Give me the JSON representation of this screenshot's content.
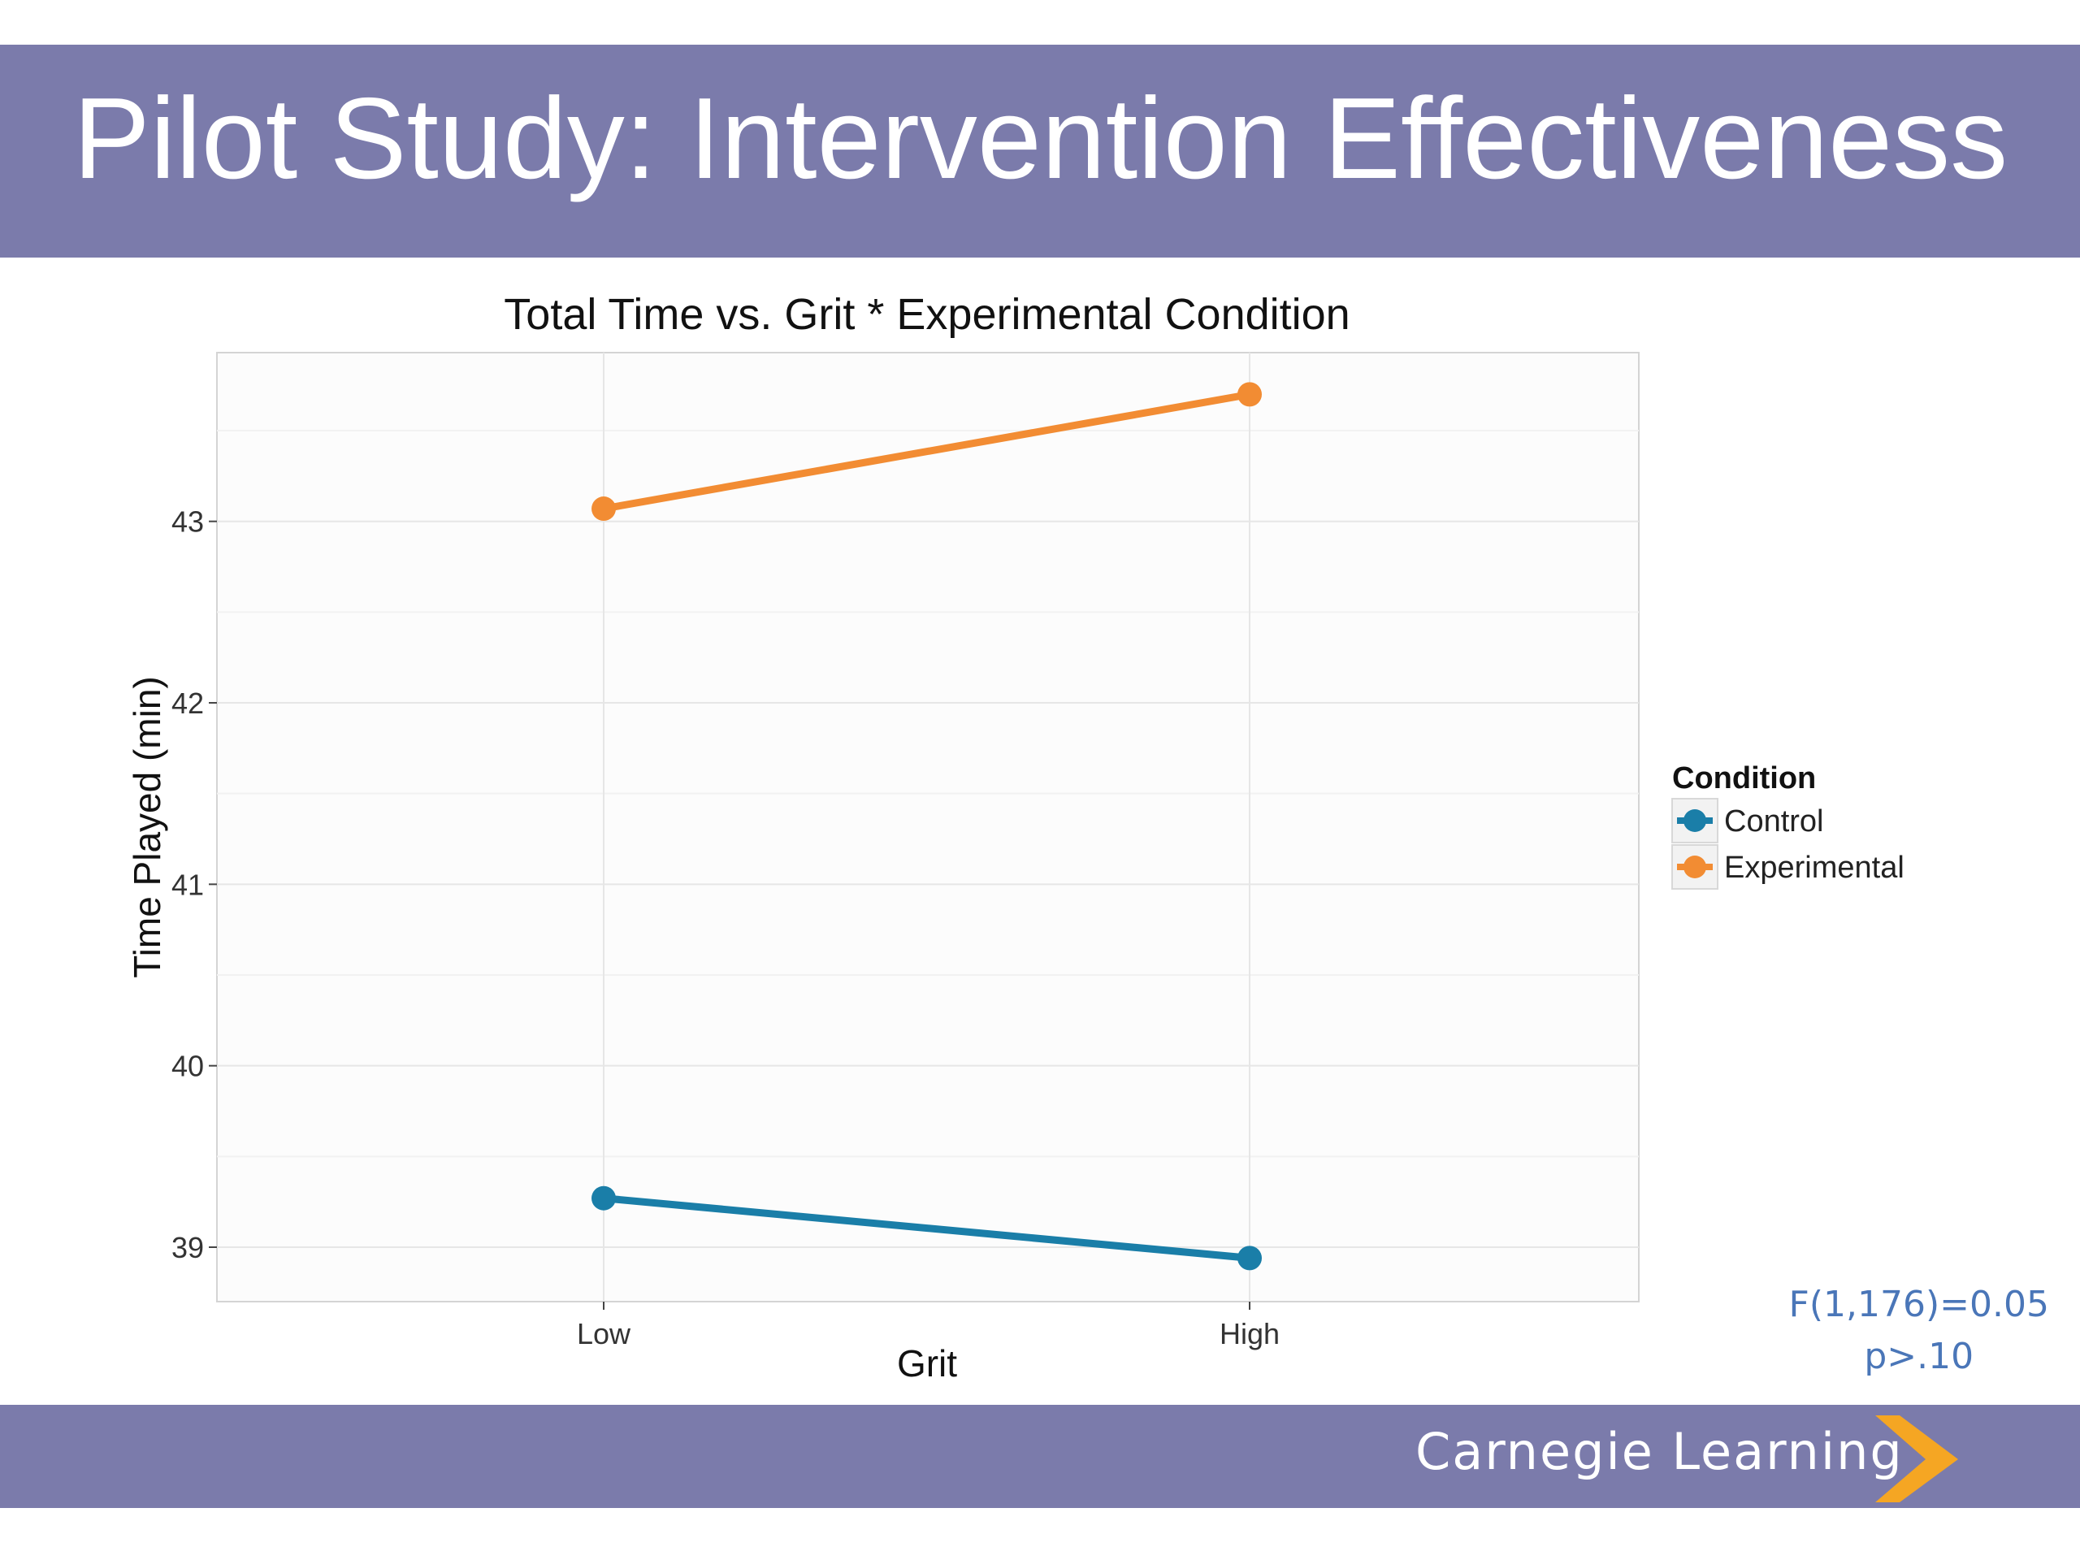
{
  "slide": {
    "title": "Pilot Study: Intervention Effectiveness",
    "stats_line1": "F(1,176)=0.05",
    "stats_line2": "p>.10",
    "brand": "Carnegie Learning",
    "brand_color": "#7b7bab",
    "chevron_color": "#f5a623"
  },
  "chart_data": {
    "type": "line",
    "title": "Total Time vs. Grit * Experimental Condition",
    "xlabel": "Grit",
    "ylabel": "Time Played (min)",
    "categories": [
      "Low",
      "High"
    ],
    "ylim": [
      38.7,
      43.93
    ],
    "yticks": [
      39,
      40,
      41,
      42,
      43
    ],
    "grid": true,
    "legend_title": "Condition",
    "legend_position": "right",
    "series": [
      {
        "name": "Control",
        "values": [
          39.27,
          38.94
        ],
        "color": "#1a7ea8"
      },
      {
        "name": "Experimental",
        "values": [
          43.07,
          43.7
        ],
        "color": "#f28c33"
      }
    ]
  }
}
